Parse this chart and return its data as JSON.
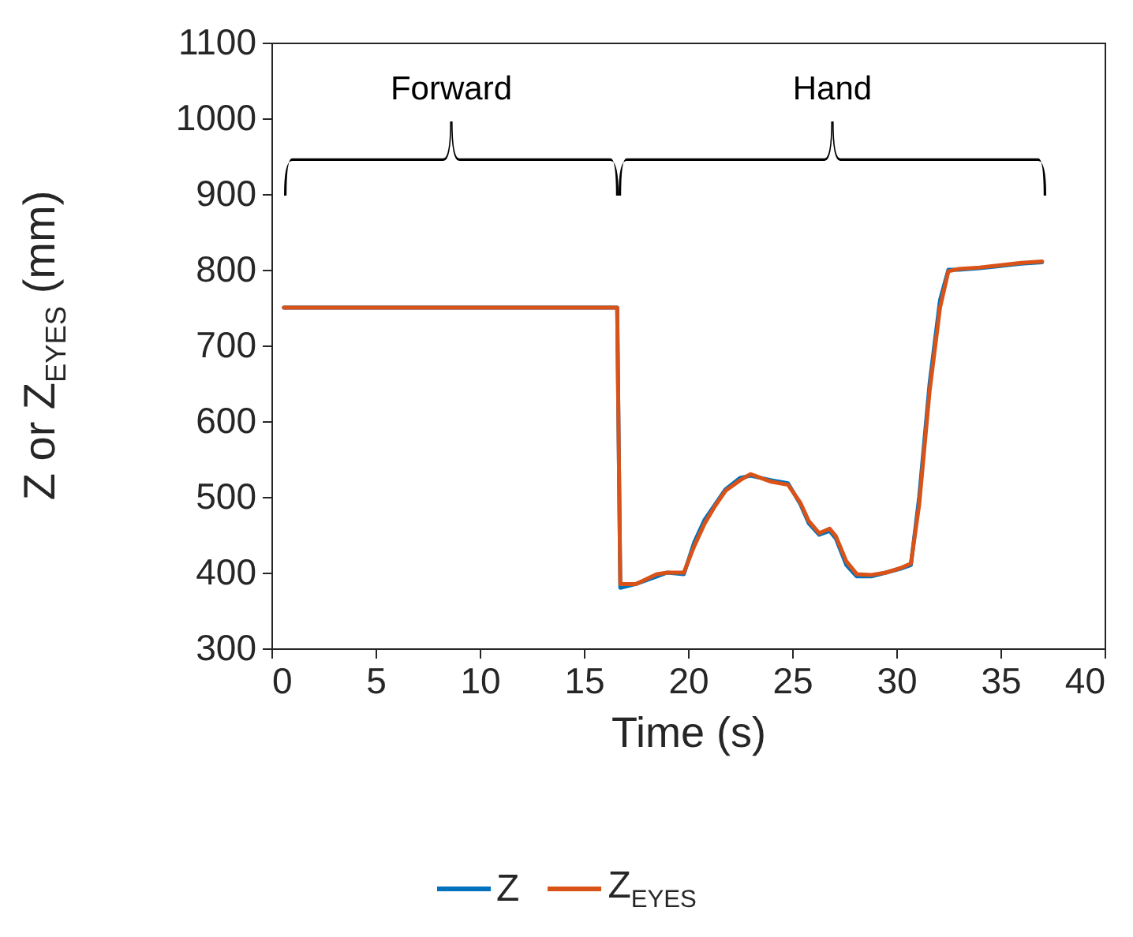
{
  "chart_data": {
    "type": "line",
    "xlabel": "Time (s)",
    "ylabel": "Z or Z$_{EYES}$ (mm)",
    "x": [
      0.6,
      16.6,
      16.75,
      17.5,
      18.5,
      19,
      19.8,
      20.3,
      20.8,
      21.3,
      21.8,
      22.5,
      23,
      24,
      24.8,
      25.4,
      25.8,
      26.3,
      26.8,
      27.1,
      27.6,
      28.1,
      28.8,
      29.5,
      30.2,
      30.7,
      31.1,
      31.6,
      32.1,
      32.5,
      33,
      34,
      35,
      36,
      37
    ],
    "series": [
      {
        "name": "Z",
        "color": "#0072bd",
        "values": [
          750,
          750,
          380,
          385,
          395,
          400,
          398,
          440,
          470,
          490,
          510,
          525,
          528,
          522,
          518,
          490,
          465,
          450,
          455,
          445,
          410,
          395,
          395,
          400,
          405,
          410,
          500,
          650,
          760,
          800,
          800,
          802,
          805,
          808,
          810
        ]
      },
      {
        "name": "Z$_{EYES}$",
        "color": "#d95319",
        "values": [
          750,
          750,
          385,
          385,
          398,
          400,
          400,
          435,
          465,
          488,
          508,
          522,
          530,
          520,
          516,
          492,
          468,
          452,
          458,
          448,
          415,
          398,
          397,
          400,
          406,
          412,
          490,
          640,
          750,
          798,
          801,
          803,
          806,
          809,
          811
        ]
      }
    ],
    "xlim": [
      0,
      40
    ],
    "xticks": [
      0,
      5,
      10,
      15,
      20,
      25,
      30,
      35,
      40
    ],
    "ylim": [
      300,
      1100
    ],
    "yticks": [
      300,
      400,
      500,
      600,
      700,
      800,
      900,
      1000,
      1100
    ],
    "annotations": [
      "Forward",
      "Hand"
    ],
    "legend": "bottom"
  }
}
